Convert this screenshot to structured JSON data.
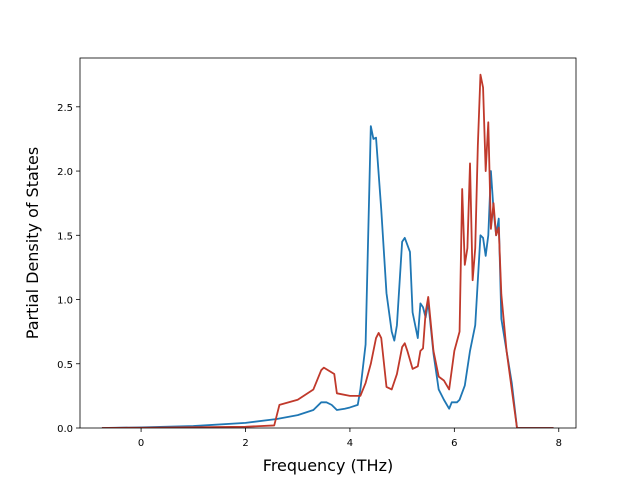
{
  "chart_data": {
    "type": "line",
    "xlabel": "Frequency (THz)",
    "ylabel": "Partial Density of States",
    "xlim": [
      -1.17,
      8.33
    ],
    "ylim": [
      0,
      2.88
    ],
    "xticks": [
      0,
      2,
      4,
      6,
      8
    ],
    "yticks": [
      {
        "value": 0,
        "label": "0.0"
      },
      {
        "value": 0.5,
        "label": "0.5"
      },
      {
        "value": 1,
        "label": "1.0"
      },
      {
        "value": 1.5,
        "label": "1.5"
      },
      {
        "value": 2,
        "label": "2.0"
      },
      {
        "value": 2.5,
        "label": "2.5"
      }
    ],
    "series": [
      {
        "color": "#1f77b4",
        "x": [
          -0.75,
          0,
          1,
          2,
          2.6,
          3,
          3.3,
          3.45,
          3.55,
          3.65,
          3.75,
          3.9,
          4.0,
          4.15,
          4.2,
          4.3,
          4.4,
          4.45,
          4.5,
          4.6,
          4.7,
          4.8,
          4.85,
          4.9,
          5.0,
          5.05,
          5.15,
          5.2,
          5.3,
          5.35,
          5.4,
          5.45,
          5.5,
          5.6,
          5.7,
          5.8,
          5.9,
          5.95,
          6.05,
          6.1,
          6.2,
          6.3,
          6.4,
          6.5,
          6.55,
          6.6,
          6.65,
          6.7,
          6.75,
          6.8,
          6.85,
          6.9,
          7.0,
          7.1,
          7.2,
          7.9
        ],
        "values": [
          0,
          0.005,
          0.015,
          0.04,
          0.07,
          0.1,
          0.14,
          0.2,
          0.2,
          0.18,
          0.14,
          0.15,
          0.16,
          0.18,
          0.3,
          0.65,
          2.35,
          2.25,
          2.26,
          1.7,
          1.05,
          0.75,
          0.68,
          0.8,
          1.45,
          1.48,
          1.37,
          0.9,
          0.7,
          0.97,
          0.94,
          0.86,
          0.98,
          0.58,
          0.3,
          0.22,
          0.15,
          0.2,
          0.2,
          0.22,
          0.33,
          0.6,
          0.8,
          1.5,
          1.48,
          1.34,
          1.5,
          2.0,
          1.7,
          1.5,
          1.63,
          0.85,
          0.6,
          0.35,
          0,
          0
        ]
      },
      {
        "color": "#c0392b",
        "x": [
          -0.75,
          0,
          2,
          2.55,
          2.65,
          3.0,
          3.3,
          3.45,
          3.5,
          3.7,
          3.75,
          4.0,
          4.2,
          4.3,
          4.4,
          4.5,
          4.55,
          4.6,
          4.7,
          4.8,
          4.9,
          5.0,
          5.05,
          5.1,
          5.2,
          5.3,
          5.35,
          5.4,
          5.45,
          5.5,
          5.6,
          5.7,
          5.8,
          5.9,
          6.0,
          6.1,
          6.15,
          6.2,
          6.25,
          6.3,
          6.35,
          6.4,
          6.45,
          6.5,
          6.55,
          6.6,
          6.65,
          6.7,
          6.75,
          6.8,
          6.85,
          6.9,
          7.0,
          7.1,
          7.2,
          7.9
        ],
        "values": [
          0,
          0.002,
          0.01,
          0.02,
          0.18,
          0.22,
          0.3,
          0.45,
          0.47,
          0.42,
          0.27,
          0.25,
          0.25,
          0.35,
          0.5,
          0.7,
          0.74,
          0.7,
          0.32,
          0.3,
          0.42,
          0.63,
          0.66,
          0.6,
          0.46,
          0.48,
          0.6,
          0.62,
          0.9,
          1.02,
          0.6,
          0.4,
          0.37,
          0.3,
          0.6,
          0.75,
          1.86,
          1.27,
          1.4,
          2.06,
          1.15,
          1.4,
          2.2,
          2.75,
          2.65,
          2.0,
          2.38,
          1.55,
          1.75,
          1.5,
          1.56,
          1.04,
          0.6,
          0.3,
          0,
          0
        ]
      }
    ]
  }
}
